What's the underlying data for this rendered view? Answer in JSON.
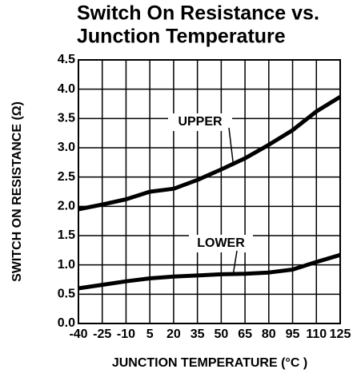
{
  "chart_data": {
    "type": "line",
    "title": [
      "Switch On Resistance vs.",
      "Junction Temperature"
    ],
    "x_label": "JUNCTION TEMPERATURE (°C )",
    "y_label": "SWITCH ON RESISTANCE (Ω)",
    "x": [
      -40,
      -25,
      -10,
      5,
      20,
      35,
      50,
      65,
      80,
      95,
      110,
      125
    ],
    "series": [
      {
        "name": "UPPER",
        "color": "#000000",
        "values": [
          1.95,
          2.03,
          2.12,
          2.25,
          2.3,
          2.45,
          2.63,
          2.82,
          3.05,
          3.3,
          3.62,
          3.87
        ]
      },
      {
        "name": "LOWER",
        "color": "#000000",
        "values": [
          0.6,
          0.66,
          0.72,
          0.77,
          0.8,
          0.82,
          0.84,
          0.85,
          0.87,
          0.92,
          1.05,
          1.17
        ]
      }
    ],
    "xlim": [
      -40,
      125
    ],
    "xticks": [
      -40,
      -25,
      -10,
      5,
      20,
      35,
      50,
      65,
      80,
      95,
      110,
      125
    ],
    "ylim": [
      0,
      4.5
    ],
    "yticks": [
      {
        "value": 0,
        "label": "0.0"
      },
      0.5,
      {
        "value": 1,
        "label": "1.0"
      },
      1.5,
      {
        "value": 2,
        "label": "2.0"
      },
      2.5,
      {
        "value": 3,
        "label": "3.0"
      },
      3.5,
      {
        "value": 4,
        "label": "4.0"
      },
      4.5
    ],
    "grid": true
  }
}
